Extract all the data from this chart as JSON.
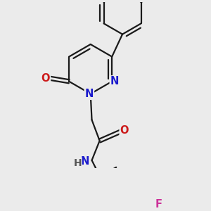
{
  "bg_color": "#ebebeb",
  "bond_color": "#1a1a1a",
  "bond_width": 1.6,
  "dbo": 0.055,
  "atom_colors": {
    "N": "#1a1acc",
    "O": "#cc1a1a",
    "F": "#cc3399",
    "H": "#555555"
  },
  "font_size": 10.5,
  "fig_size": [
    3.0,
    3.0
  ],
  "dpi": 100
}
